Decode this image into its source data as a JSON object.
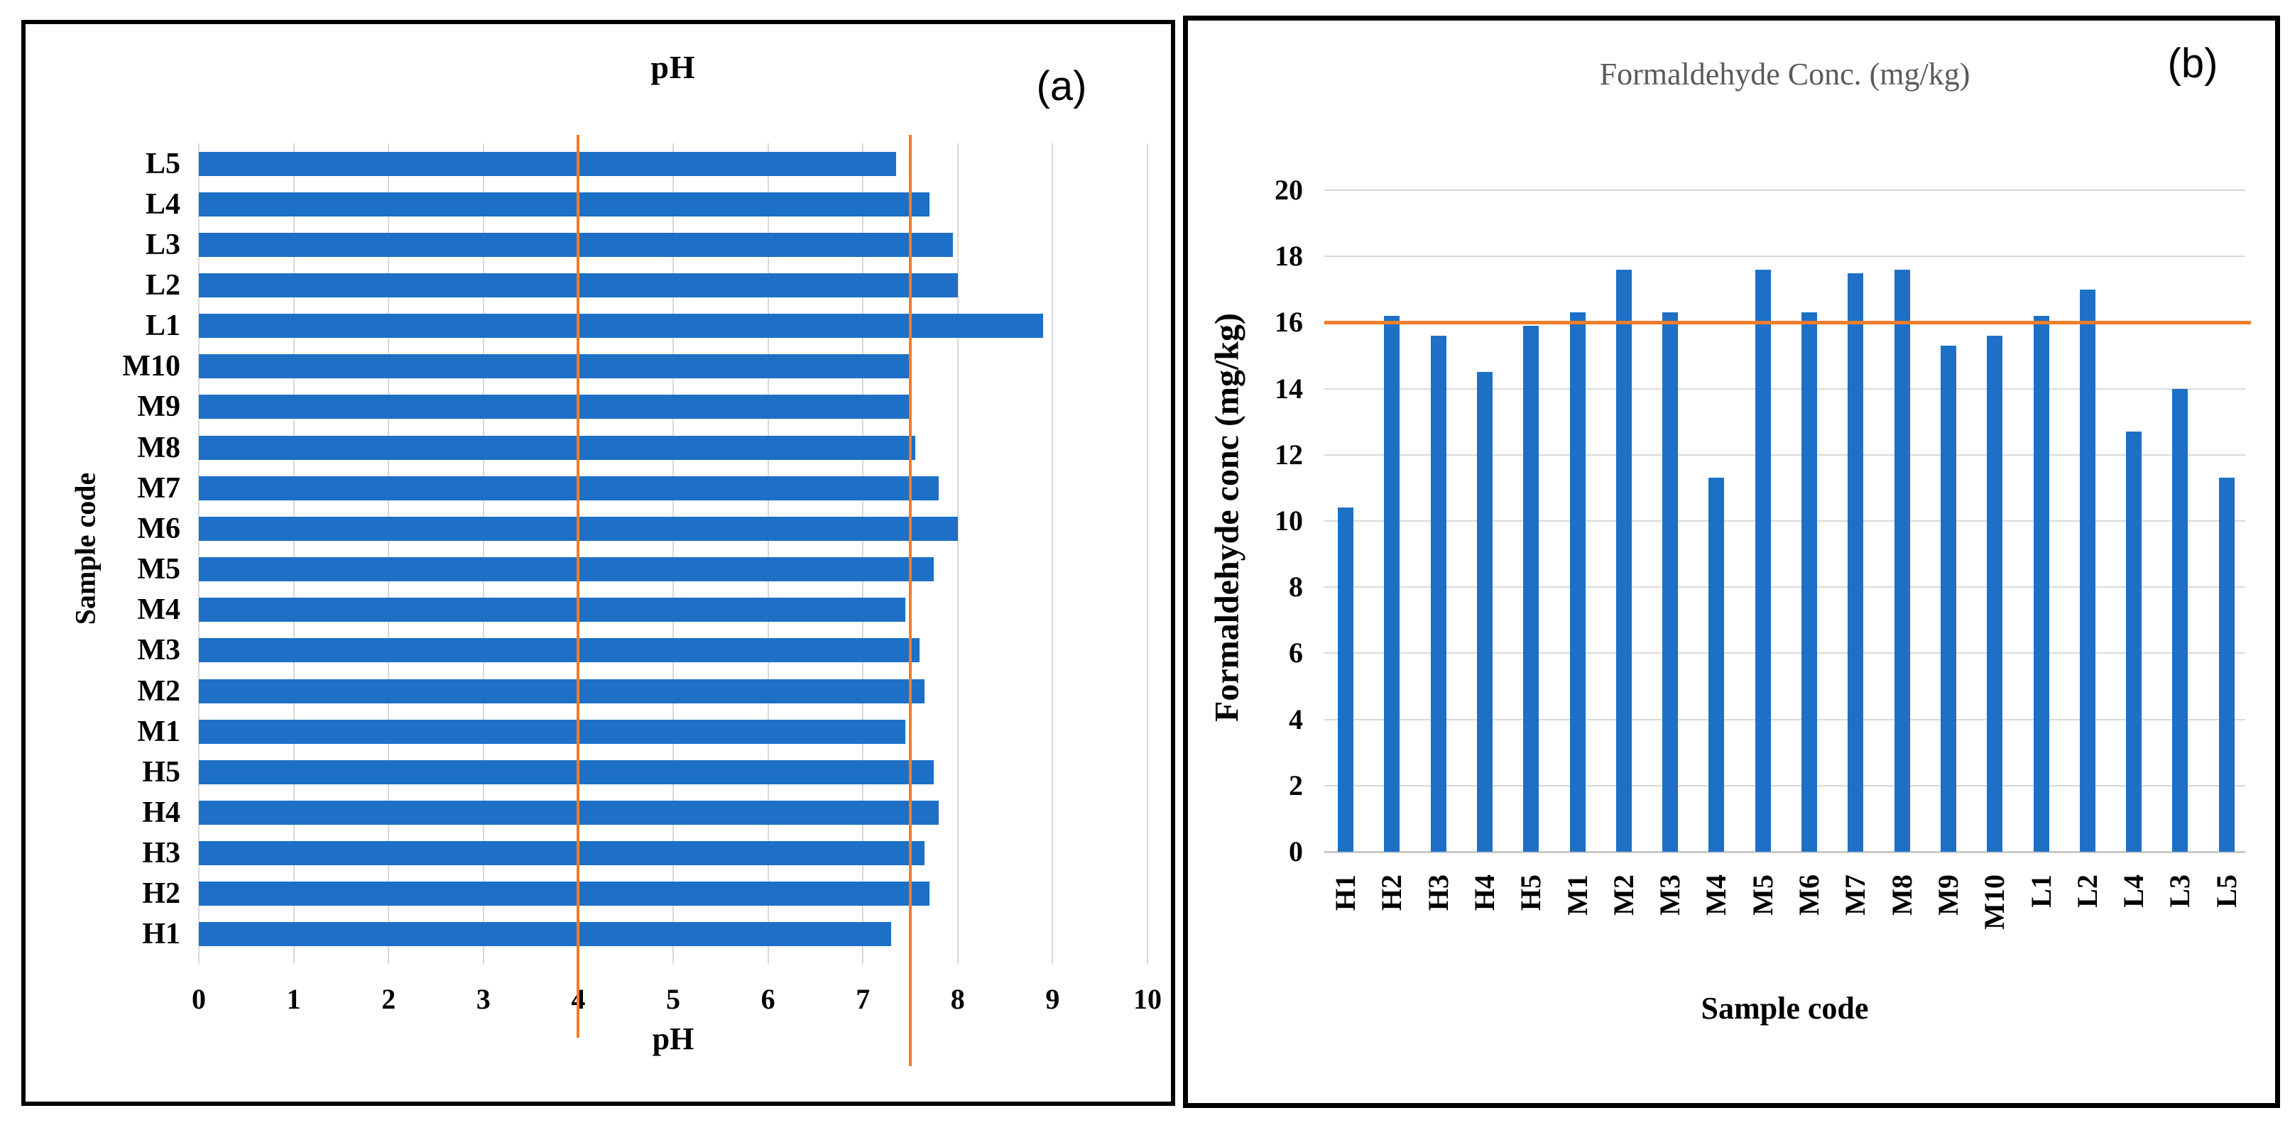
{
  "figure": {
    "panel_a_label": "(a)",
    "panel_b_label": "(b)"
  },
  "colors": {
    "bar_blue": "#1d70c6",
    "reference_orange": "#f07d28",
    "gridline_gray": "#d9d9d9",
    "title_b_gray": "#5a5a5a"
  },
  "chart_data": [
    {
      "type": "bar",
      "orientation": "horizontal",
      "title": "pH",
      "xlabel": "pH",
      "ylabel": "Sample code",
      "xlim": [
        0,
        10
      ],
      "xticks": [
        0,
        1,
        2,
        3,
        4,
        5,
        6,
        7,
        8,
        9,
        10
      ],
      "grid": "vertical",
      "legend": "none",
      "categories_top_to_bottom": [
        "L5",
        "L4",
        "L3",
        "L2",
        "L1",
        "M10",
        "M9",
        "M8",
        "M7",
        "M6",
        "M5",
        "M4",
        "M3",
        "M2",
        "M1",
        "H5",
        "H4",
        "H3",
        "H2",
        "H1"
      ],
      "values_top_to_bottom": [
        7.35,
        7.7,
        7.95,
        8.0,
        8.9,
        7.5,
        7.5,
        7.55,
        7.8,
        8.0,
        7.75,
        7.45,
        7.6,
        7.65,
        7.45,
        7.75,
        7.8,
        7.65,
        7.7,
        7.3
      ],
      "reference_lines_x": [
        4,
        7.5
      ],
      "bar_color": "#1d70c6",
      "reference_color": "#f07d28"
    },
    {
      "type": "bar",
      "orientation": "vertical",
      "title": "Formaldehyde Conc. (mg/kg)",
      "xlabel": "Sample code",
      "ylabel": "Formaldehyde conc (mg/kg)",
      "ylim": [
        0,
        20
      ],
      "yticks": [
        0,
        2,
        4,
        6,
        8,
        10,
        12,
        14,
        16,
        18,
        20
      ],
      "grid": "horizontal",
      "legend": "none",
      "categories": [
        "H1",
        "H2",
        "H3",
        "H4",
        "H5",
        "M1",
        "M2",
        "M3",
        "M4",
        "M5",
        "M6",
        "M7",
        "M8",
        "M9",
        "M10",
        "L1",
        "L2",
        "L4",
        "L3",
        "L5"
      ],
      "values": [
        10.4,
        16.2,
        15.6,
        14.5,
        15.9,
        16.3,
        17.6,
        16.3,
        11.3,
        17.6,
        16.3,
        17.5,
        17.6,
        15.3,
        15.6,
        16.2,
        17.0,
        12.7,
        14.0,
        11.3
      ],
      "reference_line_y": 16,
      "bar_color": "#1d70c6",
      "reference_color": "#f07d28"
    }
  ]
}
